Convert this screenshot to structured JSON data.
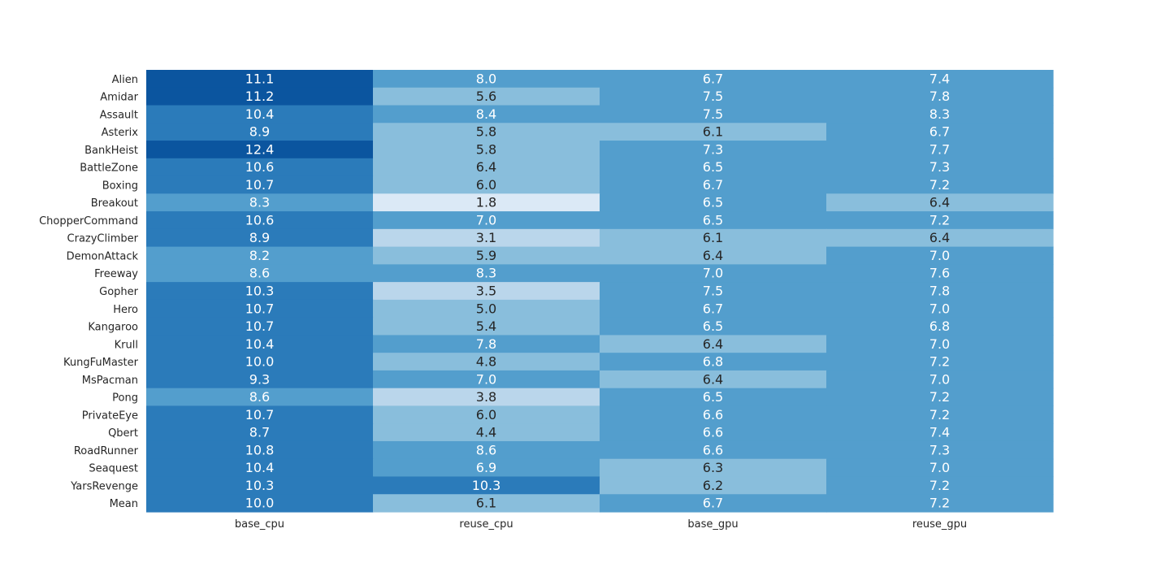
{
  "chart_data": {
    "type": "heatmap",
    "title": "",
    "xlabel": "",
    "ylabel": "",
    "colormap": "Blues",
    "value_range": [
      0,
      13
    ],
    "palette": [
      "#dbe9f6",
      "#bad6eb",
      "#89bedc",
      "#539ecd",
      "#2b7bba",
      "#0b559f"
    ],
    "text_colors": {
      "dark": "#262626",
      "light": "#ffffff"
    },
    "columns": [
      "base_cpu",
      "reuse_cpu",
      "base_gpu",
      "reuse_gpu"
    ],
    "rows": [
      "Alien",
      "Amidar",
      "Assault",
      "Asterix",
      "BankHeist",
      "BattleZone",
      "Boxing",
      "Breakout",
      "ChopperCommand",
      "CrazyClimber",
      "DemonAttack",
      "Freeway",
      "Gopher",
      "Hero",
      "Kangaroo",
      "Krull",
      "KungFuMaster",
      "MsPacman",
      "Pong",
      "PrivateEye",
      "Qbert",
      "RoadRunner",
      "Seaquest",
      "YarsRevenge",
      "Mean"
    ],
    "values": [
      [
        11.1,
        8.0,
        6.7,
        7.4
      ],
      [
        11.2,
        5.6,
        7.5,
        7.8
      ],
      [
        10.4,
        8.4,
        7.5,
        8.3
      ],
      [
        8.9,
        5.8,
        6.1,
        6.7
      ],
      [
        12.4,
        5.8,
        7.3,
        7.7
      ],
      [
        10.6,
        6.4,
        6.5,
        7.3
      ],
      [
        10.7,
        6.0,
        6.7,
        7.2
      ],
      [
        8.3,
        1.8,
        6.5,
        6.4
      ],
      [
        10.6,
        7.0,
        6.5,
        7.2
      ],
      [
        8.9,
        3.1,
        6.1,
        6.4
      ],
      [
        8.2,
        5.9,
        6.4,
        7.0
      ],
      [
        8.6,
        8.3,
        7.0,
        7.6
      ],
      [
        10.3,
        3.5,
        7.5,
        7.8
      ],
      [
        10.7,
        5.0,
        6.7,
        7.0
      ],
      [
        10.7,
        5.4,
        6.5,
        6.8
      ],
      [
        10.4,
        7.8,
        6.4,
        7.0
      ],
      [
        10.0,
        4.8,
        6.8,
        7.2
      ],
      [
        9.3,
        7.0,
        6.4,
        7.0
      ],
      [
        8.6,
        3.8,
        6.5,
        7.2
      ],
      [
        10.7,
        6.0,
        6.6,
        7.2
      ],
      [
        8.7,
        4.4,
        6.6,
        7.4
      ],
      [
        10.8,
        8.6,
        6.6,
        7.3
      ],
      [
        10.4,
        6.9,
        6.3,
        7.0
      ],
      [
        10.3,
        10.3,
        6.2,
        7.2
      ],
      [
        10.0,
        6.1,
        6.7,
        7.2
      ]
    ]
  }
}
